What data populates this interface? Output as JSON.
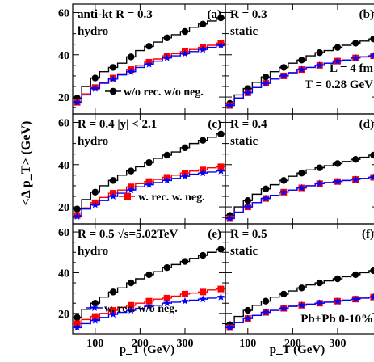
{
  "figure": {
    "ylabel": "<Δ p_T> (GeV)",
    "xlabel": "p_T (GeV)",
    "legend": {
      "black": "w/o rec. w/o neg.",
      "red": "w. rec. w. neg.",
      "blue": "w. rec. w/o neg."
    },
    "colors": {
      "black": "#000000",
      "red": "#ff0000",
      "blue": "#0000ff"
    },
    "marker_shapes": {
      "black": "circle",
      "red": "square",
      "blue": "star"
    }
  },
  "chart_data": [
    {
      "type": "line",
      "panel_label": "(a)",
      "row": 0,
      "col": 0,
      "text_lines": [
        "anti-kt R = 0.3",
        "hydro"
      ],
      "xlim": [
        50,
        390
      ],
      "ylim": [
        12,
        64
      ],
      "xticks": [
        100,
        200,
        300
      ],
      "yticks": [
        20,
        40,
        60
      ],
      "x": [
        60,
        80,
        100,
        120,
        140,
        160,
        180,
        200,
        220,
        240,
        260,
        280,
        300,
        320,
        340,
        360,
        380
      ],
      "series": [
        {
          "name": "w/o rec. w/o neg.",
          "color": "black",
          "marker": "circle",
          "values": [
            19.5,
            25,
            29,
            32,
            34,
            36,
            39,
            42,
            44,
            46,
            48,
            49.5,
            51,
            53,
            54.5,
            56,
            57.5
          ]
        },
        {
          "name": "w. rec. w. neg.",
          "color": "red",
          "marker": "square",
          "values": [
            17.5,
            21.5,
            24.5,
            27,
            29,
            31,
            33,
            35,
            36.5,
            38,
            39.5,
            40.5,
            41.5,
            42.5,
            43.5,
            44.5,
            45.5
          ]
        },
        {
          "name": "w. rec. w/o neg.",
          "color": "blue",
          "marker": "star",
          "values": [
            17.5,
            21,
            24,
            26.5,
            28.5,
            30.5,
            32,
            34,
            35.5,
            37,
            38.5,
            39.5,
            40.5,
            41.5,
            42.5,
            43.5,
            44.5
          ]
        }
      ]
    },
    {
      "type": "line",
      "panel_label": "(b)",
      "row": 0,
      "col": 1,
      "text_lines": [
        "R = 0.3",
        "static"
      ],
      "annotations": [
        "L = 4 fm",
        "T = 0.28 GeV"
      ],
      "xlim": [
        50,
        390
      ],
      "ylim": [
        12,
        64
      ],
      "xticks": [
        100,
        200,
        300
      ],
      "yticks": [
        20,
        40,
        60
      ],
      "x": [
        60,
        80,
        100,
        120,
        140,
        160,
        180,
        200,
        220,
        240,
        260,
        280,
        300,
        320,
        340,
        360,
        380
      ],
      "series": [
        {
          "name": "w/o rec. w/o neg.",
          "color": "black",
          "marker": "circle",
          "values": [
            17,
            21,
            24,
            27,
            29.5,
            32,
            34,
            36,
            37.5,
            39.5,
            41,
            42,
            43.5,
            44.5,
            45.5,
            46.5,
            47.5
          ]
        },
        {
          "name": "w. rec. w. neg.",
          "color": "red",
          "marker": "square",
          "values": [
            16,
            19.5,
            22,
            24.5,
            26.5,
            28.5,
            30,
            31.5,
            33,
            34,
            35,
            36,
            37,
            37.5,
            38.5,
            39,
            39.5
          ]
        },
        {
          "name": "w. rec. w/o neg.",
          "color": "blue",
          "marker": "star",
          "values": [
            16,
            19.5,
            22,
            24.5,
            26.5,
            28.5,
            30,
            31.5,
            33,
            34,
            35,
            36,
            37,
            37.5,
            38.5,
            39,
            39.5
          ]
        }
      ]
    },
    {
      "type": "line",
      "panel_label": "(c)",
      "row": 1,
      "col": 0,
      "text_lines": [
        "R = 0.4  |y| < 2.1",
        "hydro"
      ],
      "xlim": [
        50,
        390
      ],
      "ylim": [
        12,
        64
      ],
      "xticks": [
        100,
        200,
        300
      ],
      "yticks": [
        20,
        40,
        60
      ],
      "x": [
        60,
        80,
        100,
        120,
        140,
        160,
        180,
        200,
        220,
        240,
        260,
        280,
        300,
        320,
        340,
        360,
        380
      ],
      "series": [
        {
          "name": "w/o rec. w/o neg.",
          "color": "black",
          "marker": "circle",
          "values": [
            19,
            23.5,
            27,
            30,
            32.5,
            35,
            37,
            39,
            41,
            43,
            44.5,
            46,
            48,
            50,
            51.5,
            53,
            54.5
          ]
        },
        {
          "name": "w. rec. w. neg.",
          "color": "red",
          "marker": "square",
          "values": [
            16,
            19.5,
            22,
            24.5,
            26.5,
            28,
            29.5,
            31,
            32,
            33,
            34,
            35,
            36,
            37,
            37.5,
            38.5,
            39
          ]
        },
        {
          "name": "w. rec. w/o neg.",
          "color": "blue",
          "marker": "star",
          "values": [
            15.5,
            19,
            21,
            23,
            25,
            26.5,
            28,
            29.5,
            30.5,
            31.5,
            32.5,
            33.5,
            34.5,
            35.5,
            36,
            36.5,
            37
          ]
        }
      ]
    },
    {
      "type": "line",
      "panel_label": "(d)",
      "row": 1,
      "col": 1,
      "text_lines": [
        "R = 0.4",
        "static"
      ],
      "xlim": [
        50,
        390
      ],
      "ylim": [
        12,
        64
      ],
      "xticks": [
        100,
        200,
        300
      ],
      "yticks": [
        20,
        40,
        60
      ],
      "x": [
        60,
        80,
        100,
        120,
        140,
        160,
        180,
        200,
        220,
        240,
        260,
        280,
        300,
        320,
        340,
        360,
        380
      ],
      "series": [
        {
          "name": "w/o rec. w/o neg.",
          "color": "black",
          "marker": "circle",
          "values": [
            16,
            20,
            23,
            26,
            28.5,
            30.5,
            32.5,
            34.5,
            36,
            37.5,
            38.5,
            39.5,
            40.5,
            41.5,
            42.5,
            43.5,
            44.5
          ]
        },
        {
          "name": "w. rec. w. neg.",
          "color": "red",
          "marker": "square",
          "values": [
            14.5,
            17.5,
            20,
            22,
            24,
            25.5,
            27,
            28,
            29,
            30,
            31,
            31.5,
            32,
            32.5,
            33,
            33.5,
            34
          ]
        },
        {
          "name": "w. rec. w/o neg.",
          "color": "blue",
          "marker": "star",
          "values": [
            14.5,
            17.5,
            20,
            22,
            24,
            25.5,
            27,
            28,
            29,
            30,
            31,
            31.5,
            32,
            32.5,
            33,
            33.5,
            34
          ]
        }
      ]
    },
    {
      "type": "line",
      "panel_label": "(e)",
      "row": 2,
      "col": 0,
      "text_lines": [
        "R = 0.5   √s=5.02TeV",
        "hydro"
      ],
      "xlim": [
        50,
        390
      ],
      "ylim": [
        10,
        64
      ],
      "xticks": [
        100,
        200,
        300
      ],
      "yticks": [
        20,
        40,
        60
      ],
      "x": [
        60,
        80,
        100,
        120,
        140,
        160,
        180,
        200,
        220,
        240,
        260,
        280,
        300,
        320,
        340,
        360,
        380
      ],
      "series": [
        {
          "name": "w/o rec. w/o neg.",
          "color": "black",
          "marker": "circle",
          "values": [
            18,
            22,
            25,
            28,
            30.5,
            32.5,
            35,
            37,
            39,
            40.5,
            42.5,
            44,
            45.5,
            47,
            48.5,
            50,
            51.5
          ]
        },
        {
          "name": "w. rec. w. neg.",
          "color": "red",
          "marker": "square",
          "values": [
            15,
            17,
            18.5,
            20,
            21.5,
            23,
            24,
            25,
            26,
            27,
            27.5,
            28.5,
            29.5,
            30,
            30.5,
            31.5,
            32
          ]
        },
        {
          "name": "w. rec. w/o neg.",
          "color": "blue",
          "marker": "star",
          "values": [
            13,
            15,
            16.5,
            18,
            19.5,
            20.5,
            21.5,
            22.5,
            23.5,
            24,
            25,
            25.5,
            26,
            26.5,
            27,
            27.5,
            28
          ]
        }
      ]
    },
    {
      "type": "line",
      "panel_label": "(f)",
      "row": 2,
      "col": 1,
      "text_lines": [
        "R = 0.5",
        "static"
      ],
      "annotations": [
        "Pb+Pb 0-10%"
      ],
      "xlim": [
        50,
        390
      ],
      "ylim": [
        10,
        64
      ],
      "xticks": [
        100,
        200,
        300
      ],
      "yticks": [
        20,
        40,
        60
      ],
      "x": [
        60,
        80,
        100,
        120,
        140,
        160,
        180,
        200,
        220,
        240,
        260,
        280,
        300,
        320,
        340,
        360,
        380
      ],
      "series": [
        {
          "name": "w/o rec. w/o neg.",
          "color": "black",
          "marker": "circle",
          "values": [
            14.5,
            18.5,
            21.5,
            24,
            26,
            28,
            29.5,
            31,
            32.5,
            34,
            35,
            36,
            37,
            38,
            39,
            40,
            41
          ]
        },
        {
          "name": "w. rec. w. neg.",
          "color": "red",
          "marker": "square",
          "values": [
            13,
            15.5,
            17.5,
            19,
            20.5,
            21.5,
            22.5,
            23.5,
            24,
            24.5,
            25,
            25.5,
            26,
            26.5,
            27,
            27.5,
            28
          ]
        },
        {
          "name": "w. rec. w/o neg.",
          "color": "blue",
          "marker": "star",
          "values": [
            13,
            15.5,
            17.5,
            19,
            20.5,
            21.5,
            22.5,
            23.5,
            24,
            24.5,
            25,
            25.5,
            26,
            26.5,
            27,
            27.5,
            28
          ]
        }
      ]
    }
  ]
}
